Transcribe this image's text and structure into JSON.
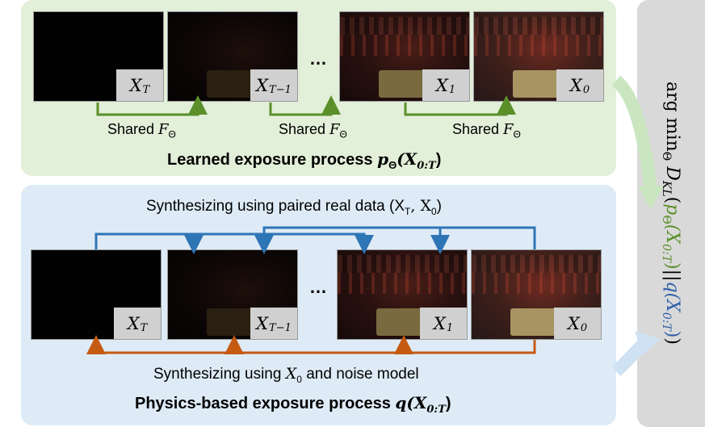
{
  "learned": {
    "frames": [
      {
        "label": "X",
        "sub": "T"
      },
      {
        "label": "X",
        "sub": "T−1"
      },
      {
        "label": "X",
        "sub": "1"
      },
      {
        "label": "X",
        "sub": "0"
      }
    ],
    "ellipsis": "…",
    "shared_text": "Shared ",
    "shared_symbol": "F",
    "shared_sub": "Θ",
    "title_text": "Learned exposure process ",
    "title_symbol": "p",
    "title_symbol_sub": "Θ",
    "title_arg": "(X",
    "title_arg_sub": "0:T",
    "title_close": ")"
  },
  "physics": {
    "frames": [
      {
        "label": "X",
        "sub": "T"
      },
      {
        "label": "X",
        "sub": "T−1"
      },
      {
        "label": "X",
        "sub": "1"
      },
      {
        "label": "X",
        "sub": "0"
      }
    ],
    "ellipsis": "…",
    "top_caption_text": "Synthesizing using paired real data (X",
    "top_caption_sub1": "T",
    "top_caption_mid": ", X",
    "top_caption_sub2": "0",
    "top_caption_close": ")",
    "bottom_caption_text": "Synthesizing using ",
    "bottom_caption_symbol": "X",
    "bottom_caption_sub": "0",
    "bottom_caption_tail": " and noise model",
    "title_text": "Physics-based exposure process ",
    "title_symbol": "q",
    "title_arg": "(X",
    "title_arg_sub": "0:T",
    "title_close": ")"
  },
  "objective": {
    "prefix": "arg min",
    "prefix_sub": "Θ",
    "kl": " D",
    "kl_sub": "KL",
    "open": "(",
    "p_symbol": "p",
    "p_sub": "Θ",
    "p_arg": "(X",
    "p_arg_sub": "0:T",
    "p_close": ")",
    "sep": "||",
    "q_symbol": "q",
    "q_arg": "(X",
    "q_arg_sub": "0:T",
    "q_close": ")",
    "close": ")"
  },
  "colors": {
    "green_panel": "#e2efd9",
    "blue_panel": "#deebf7",
    "gray_panel": "#d9d9d9",
    "green_arrow": "#5a8f2a",
    "blue_arrow": "#2e75b6",
    "orange_arrow": "#c55a11",
    "light_arrow": "#c9e6c0"
  }
}
